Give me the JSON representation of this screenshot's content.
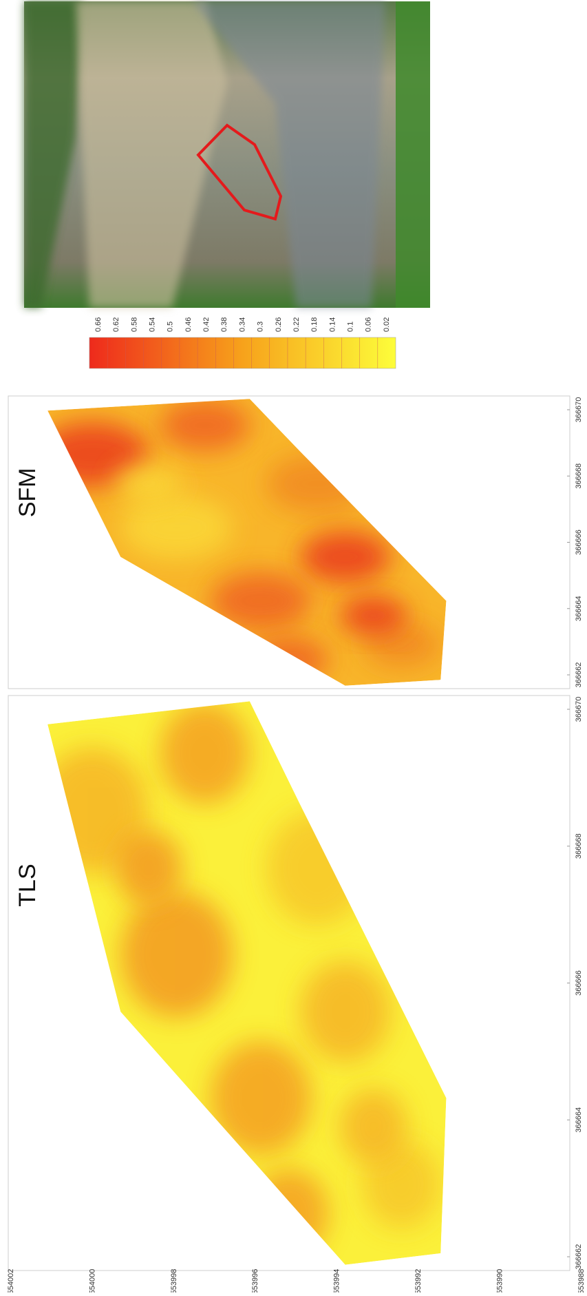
{
  "figure": {
    "panels": [
      {
        "label": "TLS",
        "x_ticks": [
          "366662",
          "366664",
          "366666",
          "366668",
          "366670"
        ]
      },
      {
        "label": "SFM",
        "x_ticks": [
          "366662",
          "366664",
          "366666",
          "366668",
          "366670"
        ]
      }
    ],
    "y_ticks": [
      "554002",
      "554000",
      "553998",
      "553996",
      "553994",
      "553992",
      "553990",
      "553988"
    ],
    "colorbar": {
      "ticks": [
        "0.66",
        "0.62",
        "0.58",
        "0.54",
        "0.5",
        "0.46",
        "0.42",
        "0.38",
        "0.34",
        "0.3",
        "0.26",
        "0.22",
        "0.18",
        "0.14",
        "0.1",
        "0.06",
        "0.02"
      ]
    }
  }
}
